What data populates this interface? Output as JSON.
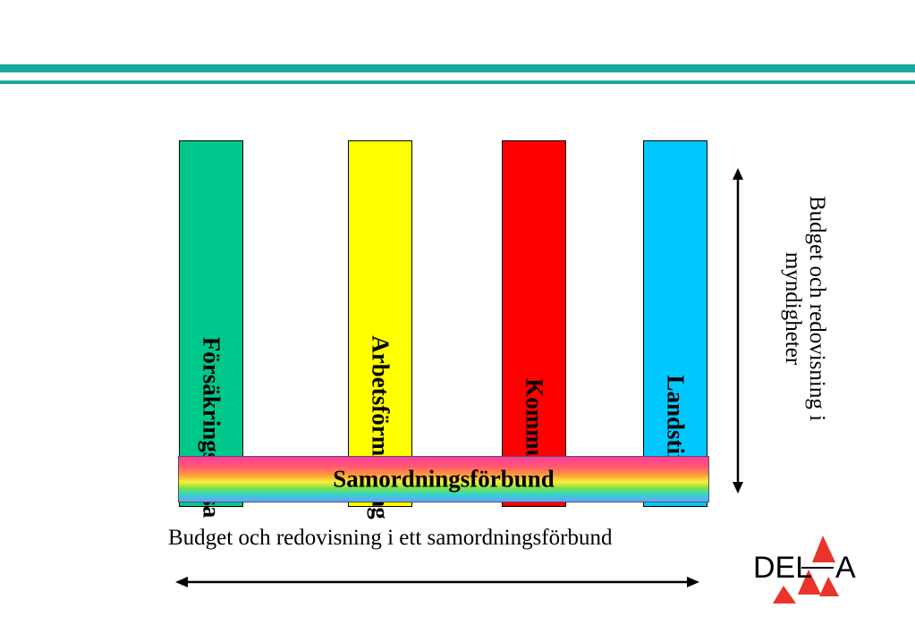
{
  "pillars": [
    {
      "label": "Försäkringskassa",
      "color": "#00c78c"
    },
    {
      "label": "Arbetsförmedling",
      "color": "#ffff00"
    },
    {
      "label": "Kommun",
      "color": "#ff0000"
    },
    {
      "label": "Landsting",
      "color": "#00c8ff"
    }
  ],
  "band": {
    "label": "Samordningsförbund"
  },
  "vertical_text": "Budget och redovisning i myndigheter",
  "horizontal_text": "Budget och redovisning i ett samordningsförbund",
  "logo": {
    "text": "DELTA",
    "color": "#e8342a"
  },
  "accent_color": "#1aa9a0"
}
